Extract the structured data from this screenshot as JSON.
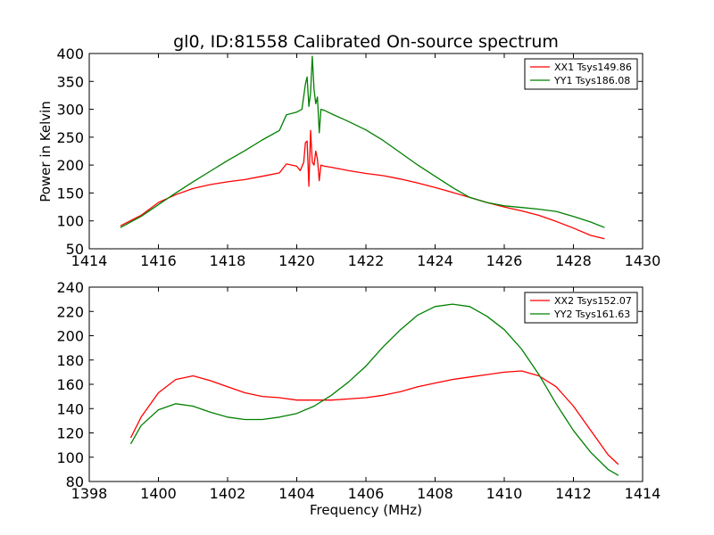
{
  "chart_data": [
    {
      "type": "line",
      "title": "gl0, ID:81558 Calibrated On-source spectrum",
      "xlabel": "",
      "ylabel": "Power in Kelvin",
      "xlim": [
        1414,
        1430
      ],
      "ylim": [
        50,
        400
      ],
      "xticks": [
        "1414",
        "1416",
        "1418",
        "1420",
        "1422",
        "1424",
        "1426",
        "1428",
        "1430"
      ],
      "yticks": [
        "50",
        "100",
        "150",
        "200",
        "250",
        "300",
        "350",
        "400"
      ],
      "legend_position": "upper right",
      "series": [
        {
          "name": "XX1 Tsys149.86",
          "color": "#ff0000",
          "x": [
            1414.9,
            1415.5,
            1416.0,
            1416.5,
            1417.0,
            1417.5,
            1418.0,
            1418.5,
            1419.0,
            1419.5,
            1419.7,
            1420.0,
            1420.1,
            1420.2,
            1420.25,
            1420.3,
            1420.35,
            1420.4,
            1420.45,
            1420.5,
            1420.55,
            1420.6,
            1420.65,
            1420.7,
            1420.8,
            1421.0,
            1421.5,
            1422.0,
            1422.5,
            1423.0,
            1423.5,
            1424.0,
            1424.5,
            1425.0,
            1425.5,
            1426.0,
            1426.5,
            1427.0,
            1427.5,
            1428.0,
            1428.5,
            1428.9
          ],
          "y": [
            91,
            110,
            133,
            147,
            158,
            165,
            170,
            174,
            180,
            186,
            202,
            198,
            190,
            205,
            240,
            243,
            162,
            262,
            205,
            200,
            225,
            210,
            172,
            200,
            198,
            196,
            190,
            185,
            181,
            175,
            168,
            160,
            151,
            142,
            133,
            125,
            118,
            110,
            99,
            87,
            74,
            68
          ]
        },
        {
          "name": "YY1 Tsys186.08",
          "color": "#008000",
          "x": [
            1414.9,
            1415.5,
            1416.0,
            1416.5,
            1417.0,
            1417.5,
            1418.0,
            1418.5,
            1419.0,
            1419.5,
            1419.7,
            1420.0,
            1420.15,
            1420.25,
            1420.3,
            1420.35,
            1420.4,
            1420.45,
            1420.5,
            1420.55,
            1420.6,
            1420.65,
            1420.7,
            1420.8,
            1421.0,
            1421.5,
            1422.0,
            1422.5,
            1423.0,
            1423.5,
            1424.0,
            1424.5,
            1425.0,
            1425.5,
            1426.0,
            1426.5,
            1427.0,
            1427.5,
            1428.0,
            1428.5,
            1428.9
          ],
          "y": [
            88,
            108,
            129,
            150,
            170,
            189,
            208,
            226,
            245,
            262,
            290,
            295,
            300,
            345,
            358,
            305,
            330,
            395,
            335,
            310,
            322,
            258,
            300,
            298,
            292,
            278,
            263,
            244,
            222,
            200,
            180,
            160,
            142,
            133,
            127,
            124,
            121,
            117,
            108,
            98,
            88
          ]
        }
      ]
    },
    {
      "type": "line",
      "title": "",
      "xlabel": "Frequency (MHz)",
      "ylabel": "",
      "xlim": [
        1398,
        1414
      ],
      "ylim": [
        80,
        240
      ],
      "xticks": [
        "1398",
        "1400",
        "1402",
        "1404",
        "1406",
        "1408",
        "1410",
        "1412",
        "1414"
      ],
      "yticks": [
        "80",
        "100",
        "120",
        "140",
        "160",
        "180",
        "200",
        "220",
        "240"
      ],
      "legend_position": "upper right",
      "series": [
        {
          "name": "XX2 Tsys152.07",
          "color": "#ff0000",
          "x": [
            1399.2,
            1399.5,
            1400.0,
            1400.5,
            1401.0,
            1401.5,
            1402.0,
            1402.5,
            1403.0,
            1403.5,
            1404.0,
            1404.5,
            1405.0,
            1405.5,
            1406.0,
            1406.5,
            1407.0,
            1407.5,
            1408.0,
            1408.5,
            1409.0,
            1409.5,
            1410.0,
            1410.5,
            1411.0,
            1411.5,
            1412.0,
            1412.5,
            1413.0,
            1413.3
          ],
          "y": [
            116,
            133,
            153,
            164,
            167,
            163,
            158,
            153,
            150,
            149,
            147,
            147,
            147,
            148,
            149,
            151,
            154,
            158,
            161,
            164,
            166,
            168,
            170,
            171,
            167,
            158,
            142,
            122,
            102,
            94
          ]
        },
        {
          "name": "YY2 Tsys161.63",
          "color": "#008000",
          "x": [
            1399.2,
            1399.5,
            1400.0,
            1400.5,
            1401.0,
            1401.5,
            1402.0,
            1402.5,
            1403.0,
            1403.5,
            1404.0,
            1404.5,
            1405.0,
            1405.5,
            1406.0,
            1406.5,
            1407.0,
            1407.5,
            1408.0,
            1408.5,
            1409.0,
            1409.5,
            1410.0,
            1410.5,
            1411.0,
            1411.5,
            1412.0,
            1412.5,
            1413.0,
            1413.3
          ],
          "y": [
            111,
            126,
            139,
            144,
            142,
            137,
            133,
            131,
            131,
            133,
            136,
            142,
            151,
            162,
            175,
            191,
            205,
            217,
            224,
            226,
            224,
            216,
            205,
            189,
            168,
            144,
            122,
            104,
            90,
            85
          ]
        }
      ]
    }
  ]
}
